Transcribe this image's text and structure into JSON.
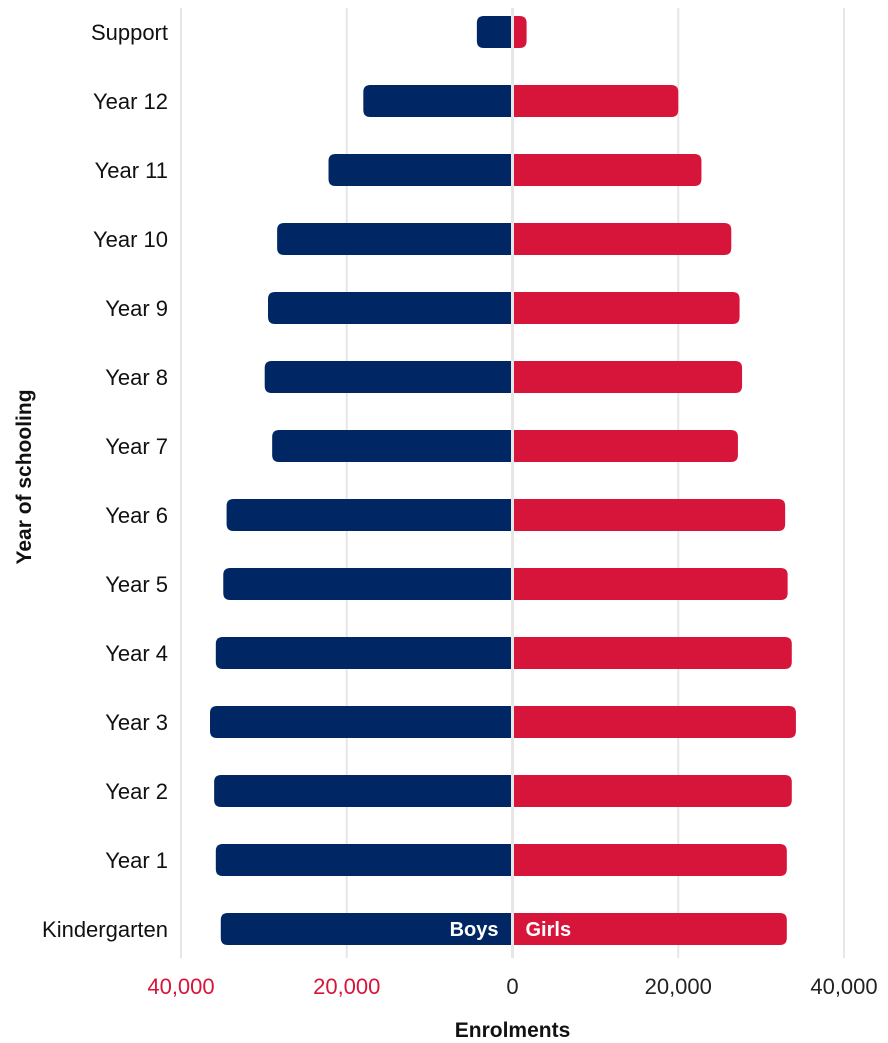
{
  "chart_data": {
    "type": "bar",
    "orientation": "horizontal-diverging",
    "categories": [
      "Support",
      "Year 12",
      "Year 11",
      "Year 10",
      "Year 9",
      "Year 8",
      "Year 7",
      "Year 6",
      "Year 5",
      "Year 4",
      "Year 3",
      "Year 2",
      "Year 1",
      "Kindergarten"
    ],
    "series": [
      {
        "name": "Boys",
        "color": "#002664",
        "side": "left",
        "values": [
          4300,
          18000,
          22200,
          28400,
          29500,
          29900,
          29000,
          34500,
          34900,
          35800,
          36500,
          36000,
          35800,
          35200
        ]
      },
      {
        "name": "Girls",
        "color": "#D7153A",
        "side": "right",
        "values": [
          1700,
          20000,
          22800,
          26400,
          27400,
          27700,
          27200,
          32900,
          33200,
          33700,
          34200,
          33700,
          33100,
          33100
        ]
      }
    ],
    "xlabel": "Enrolments",
    "ylabel": "Year of schooling",
    "xlim": [
      -40000,
      40000
    ],
    "ticks": [
      {
        "value": -40000,
        "label": "40,000",
        "color": "#D7153A"
      },
      {
        "value": -20000,
        "label": "20,000",
        "color": "#D7153A"
      },
      {
        "value": 0,
        "label": "0",
        "color": "#222222"
      },
      {
        "value": 20000,
        "label": "20,000",
        "color": "#222222"
      },
      {
        "value": 40000,
        "label": "40,000",
        "color": "#222222"
      }
    ],
    "grid": true,
    "legend": "inside-bars-bottom"
  }
}
